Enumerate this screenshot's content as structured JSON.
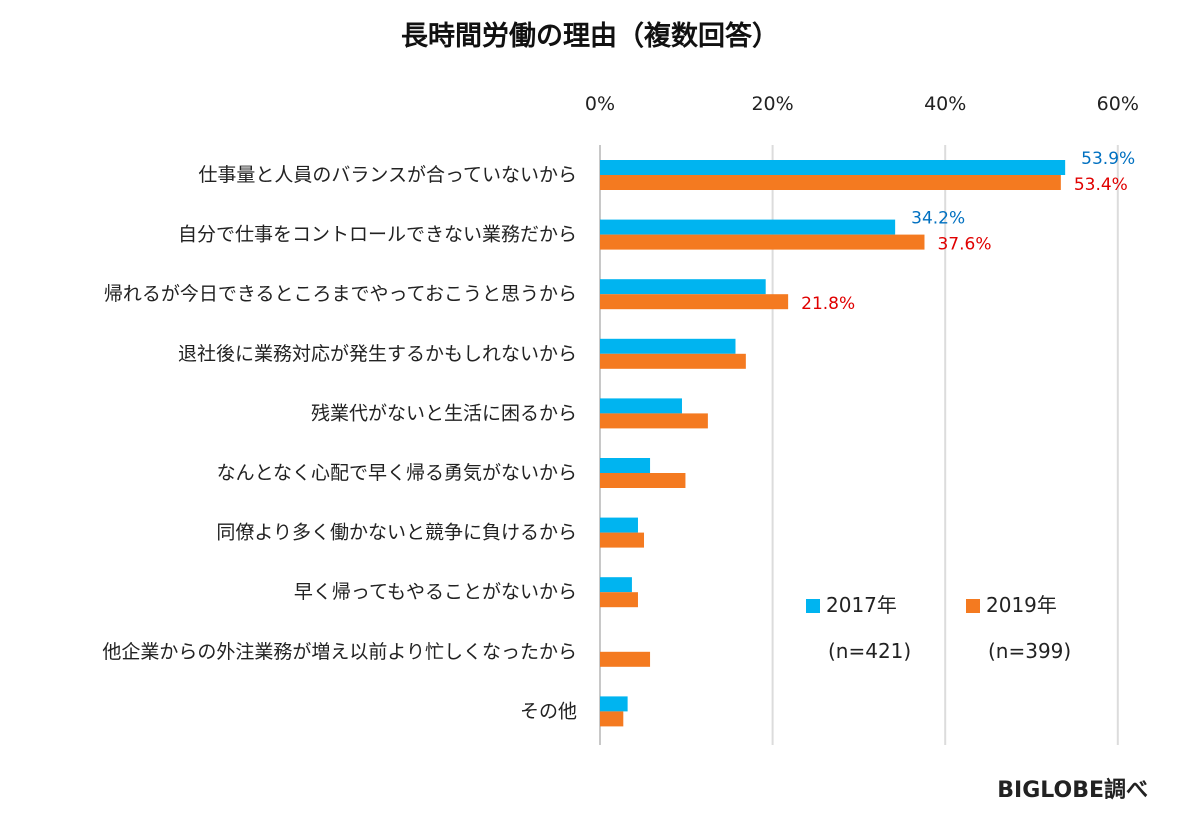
{
  "chart_data": {
    "type": "bar",
    "orientation": "horizontal",
    "title": "長時間労働の理由（複数回答）",
    "categories": [
      "仕事量と人員のバランスが合っていないから",
      "自分で仕事をコントロールできない業務だから",
      "帰れるが今日できるところまでやっておこうと思うから",
      "退社後に業務対応が発生するかもしれないから",
      "残業代がないと生活に困るから",
      "なんとなく心配で早く帰る勇気がないから",
      "同僚より多く働かないと競争に負けるから",
      "早く帰ってもやることがないから",
      "他企業からの外注業務が増え以前より忙しくなったから",
      "その他"
    ],
    "series": [
      {
        "name": "2017年",
        "sample": "(n=421)",
        "color": "#00B4F0",
        "label_color": "#0070C0",
        "values": [
          53.9,
          34.2,
          19.2,
          15.7,
          9.5,
          5.8,
          4.4,
          3.7,
          0,
          3.2
        ],
        "data_labels": [
          "53.9%",
          "34.2%",
          null,
          null,
          null,
          null,
          null,
          null,
          null,
          null
        ]
      },
      {
        "name": "2019年",
        "sample": "(n=399)",
        "color": "#F47A20",
        "label_color": "#E00000",
        "values": [
          53.4,
          37.6,
          21.8,
          16.9,
          12.5,
          9.9,
          5.1,
          4.4,
          5.8,
          2.7
        ],
        "data_labels": [
          "53.4%",
          "37.6%",
          "21.8%",
          null,
          null,
          null,
          null,
          null,
          null,
          null
        ]
      }
    ],
    "xlim": [
      0,
      60
    ],
    "xticks": [
      "0%",
      "20%",
      "40%",
      "60%"
    ],
    "xtick_values": [
      0,
      20,
      40,
      60
    ],
    "grid": true,
    "legend_position": "bottom-right",
    "source": "BIGLOBE調べ"
  }
}
